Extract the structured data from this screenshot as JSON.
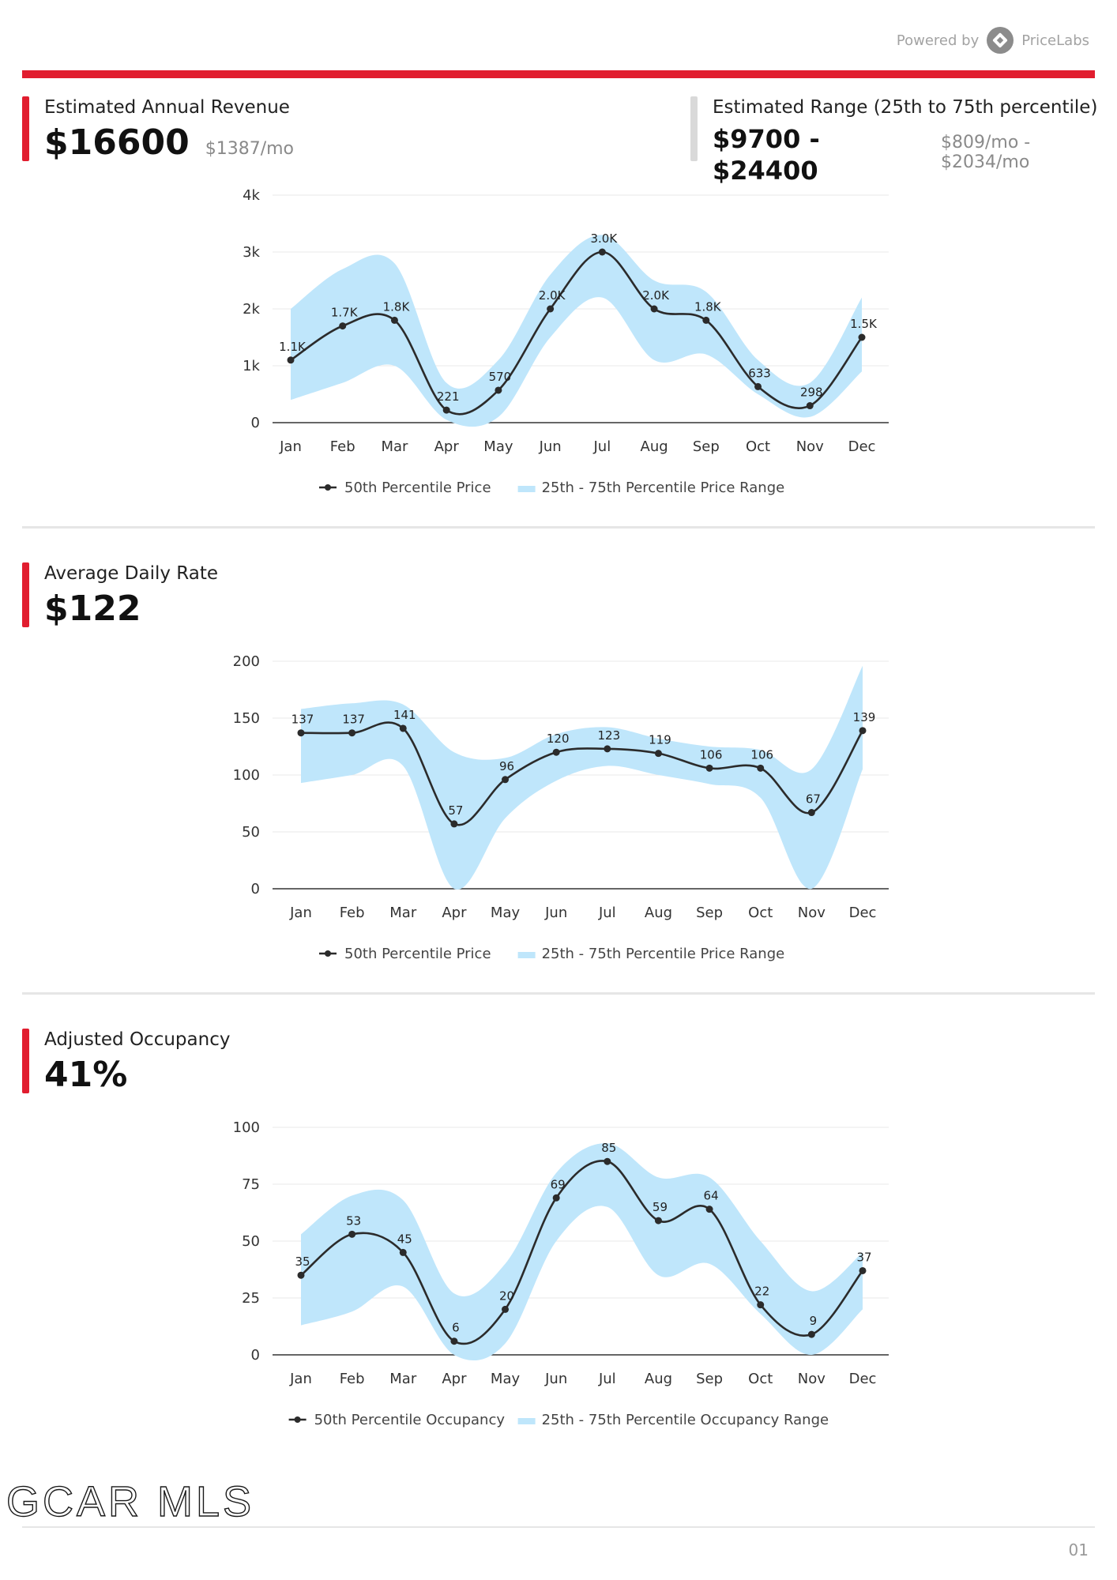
{
  "header": {
    "powered_by": "Powered by",
    "brand": "PriceLabs"
  },
  "revenue": {
    "label": "Estimated Annual Revenue",
    "value": "$16600",
    "monthly": "$1387/mo",
    "range_label": "Estimated Range (25th to 75th percentile)",
    "range_value": "$9700 - $24400",
    "range_monthly": "$809/mo - $2034/mo"
  },
  "adr": {
    "label": "Average Daily Rate",
    "value": "$122"
  },
  "occupancy": {
    "label": "Adjusted Occupancy",
    "value": "41%"
  },
  "footer": {
    "logo": "GCAR MLS",
    "page": "01"
  },
  "colors": {
    "accent": "#e11d2f",
    "band": "#bfe6fb",
    "line": "#2b2b2b",
    "divider": "#e6e6e6"
  },
  "chart_data": [
    {
      "type": "line",
      "title": "",
      "categories": [
        "Jan",
        "Feb",
        "Mar",
        "Apr",
        "May",
        "Jun",
        "Jul",
        "Aug",
        "Sep",
        "Oct",
        "Nov",
        "Dec"
      ],
      "yticks": [
        "0",
        "1k",
        "2k",
        "3k",
        "4k"
      ],
      "ylim": [
        0,
        4000
      ],
      "series": [
        {
          "name": "50th Percentile Price",
          "values": [
            1100,
            1700,
            1800,
            221,
            570,
            2000,
            3000,
            2000,
            1800,
            633,
            298,
            1500
          ],
          "labels": [
            "1.1K",
            "1.7K",
            "1.8K",
            "221",
            "570",
            "2.0K",
            "3.0K",
            "2.0K",
            "1.8K",
            "633",
            "298",
            "1.5K"
          ]
        },
        {
          "name": "25th - 75th Percentile Price Range",
          "low": [
            400,
            700,
            1000,
            50,
            100,
            1500,
            2200,
            1100,
            1200,
            500,
            100,
            900
          ],
          "high": [
            2000,
            2700,
            2800,
            700,
            1100,
            2600,
            3300,
            2500,
            2300,
            1100,
            700,
            2200
          ]
        }
      ],
      "grid": true,
      "legend": "bottom"
    },
    {
      "type": "line",
      "title": "",
      "categories": [
        "Jan",
        "Feb",
        "Mar",
        "Apr",
        "May",
        "Jun",
        "Jul",
        "Aug",
        "Sep",
        "Oct",
        "Nov",
        "Dec"
      ],
      "yticks": [
        "0",
        "50",
        "100",
        "150",
        "200"
      ],
      "ylim": [
        0,
        200
      ],
      "series": [
        {
          "name": "50th Percentile Price",
          "values": [
            137,
            137,
            141,
            57,
            96,
            120,
            123,
            119,
            106,
            106,
            67,
            139
          ],
          "labels": [
            "137",
            "137",
            "141",
            "57",
            "96",
            "120",
            "123",
            "119",
            "106",
            "106",
            "67",
            "139"
          ]
        },
        {
          "name": "25th - 75th Percentile Price Range",
          "low": [
            93,
            100,
            108,
            0,
            62,
            95,
            108,
            100,
            92,
            80,
            0,
            105
          ],
          "high": [
            158,
            163,
            162,
            120,
            115,
            136,
            142,
            132,
            125,
            122,
            105,
            196
          ]
        }
      ],
      "grid": true,
      "legend": "bottom"
    },
    {
      "type": "line",
      "title": "",
      "categories": [
        "Jan",
        "Feb",
        "Mar",
        "Apr",
        "May",
        "Jun",
        "Jul",
        "Aug",
        "Sep",
        "Oct",
        "Nov",
        "Dec"
      ],
      "yticks": [
        "0",
        "25",
        "50",
        "75",
        "100"
      ],
      "ylim": [
        0,
        100
      ],
      "series": [
        {
          "name": "50th Percentile Occupancy",
          "values": [
            35,
            53,
            45,
            6,
            20,
            69,
            85,
            59,
            64,
            22,
            9,
            37
          ],
          "labels": [
            "35",
            "53",
            "45",
            "6",
            "20",
            "69",
            "85",
            "59",
            "64",
            "22",
            "9",
            "37"
          ]
        },
        {
          "name": "25th - 75th Percentile Occupancy Range",
          "low": [
            13,
            19,
            30,
            0,
            5,
            50,
            65,
            35,
            40,
            18,
            0,
            20
          ],
          "high": [
            53,
            70,
            68,
            27,
            40,
            80,
            93,
            78,
            78,
            50,
            28,
            45
          ]
        }
      ],
      "grid": true,
      "legend": "bottom"
    }
  ]
}
